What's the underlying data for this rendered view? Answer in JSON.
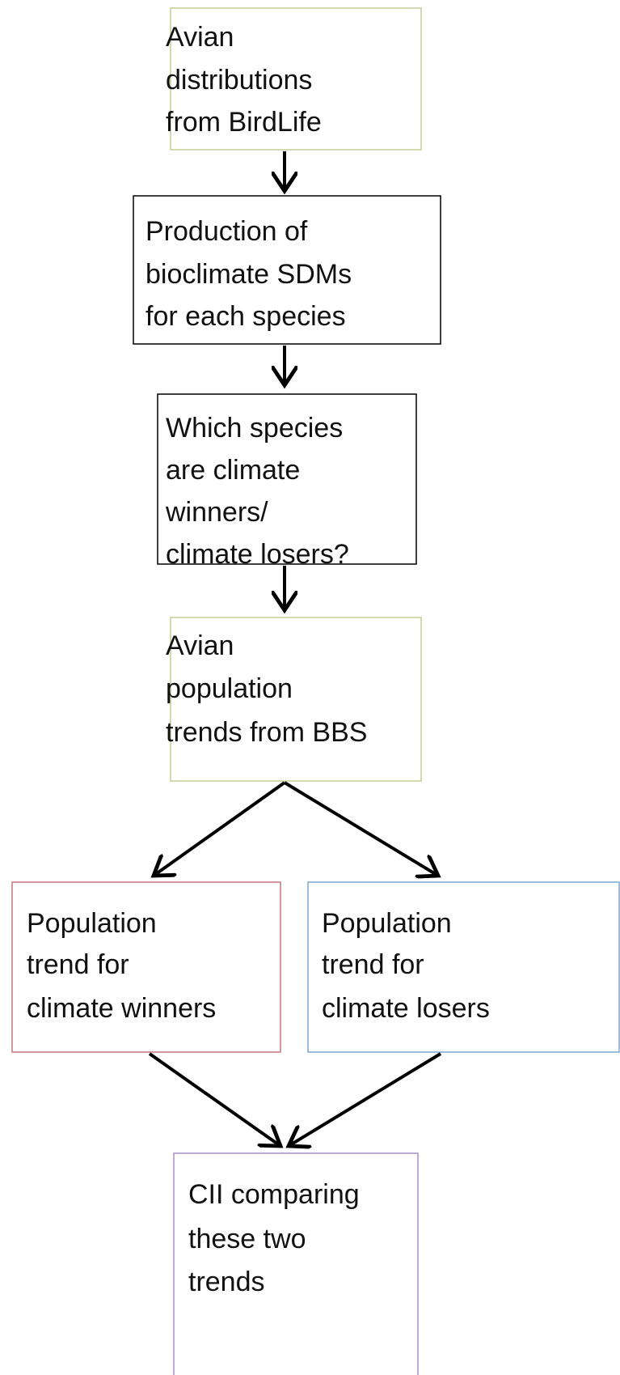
{
  "nodes": [
    {
      "lines": [
        "Avian",
        "distributions",
        "from BirdLife"
      ]
    },
    {
      "lines": [
        "Production of",
        "bioclimate SDMs",
        "for each species"
      ]
    },
    {
      "lines": [
        "Which species",
        "are climate",
        "winners/",
        "climate losers?"
      ]
    },
    {
      "lines": [
        "Avian",
        "population",
        "trends from BBS"
      ]
    },
    {
      "lines": [
        "Population",
        "trend for",
        "climate winners"
      ]
    },
    {
      "lines": [
        "Population",
        "trend for",
        "climate losers"
      ]
    },
    {
      "lines": [
        "CII comparing",
        "these two",
        "trends"
      ]
    }
  ]
}
